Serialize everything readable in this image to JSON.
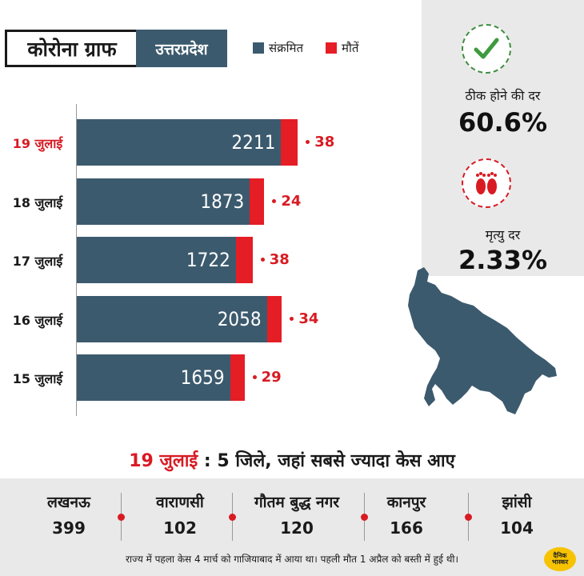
{
  "header": {
    "title": "कोरोना ग्राफ",
    "state": "उत्तरप्रदेश"
  },
  "legend": [
    {
      "label": "संक्रमित",
      "color": "#3c5a6e"
    },
    {
      "label": "मौतें",
      "color": "#e51d25"
    }
  ],
  "chart_data": {
    "type": "bar",
    "orientation": "horizontal",
    "stacked": true,
    "categories": [
      "19 जुलाई",
      "18 जुलाई",
      "17 जुलाई",
      "16 जुलाई",
      "15 जुलाई"
    ],
    "series": [
      {
        "name": "संक्रमित",
        "values": [
          2211,
          1873,
          1722,
          2058,
          1659
        ],
        "color": "#3c5a6e"
      },
      {
        "name": "मौतें",
        "values": [
          38,
          24,
          38,
          34,
          29
        ],
        "color": "#e51d25"
      }
    ],
    "highlight_category": "19 जुलाई"
  },
  "stats": {
    "recovery": {
      "label": "ठीक होने की दर",
      "value": "60.6%",
      "icon": "check-icon"
    },
    "death": {
      "label": "मृत्यु दर",
      "value": "2.33%",
      "icon": "footprints-icon"
    }
  },
  "headline": {
    "date": "19 जुलाई",
    "sep": " : ",
    "text": "5 जिले, जहां सबसे ज्यादा केस आए"
  },
  "districts": [
    {
      "name": "लखनऊ",
      "cases": "399"
    },
    {
      "name": "वाराणसी",
      "cases": "102"
    },
    {
      "name": "गौतम बुद्ध नगर",
      "cases": "120"
    },
    {
      "name": "कानपुर",
      "cases": "166"
    },
    {
      "name": "झांसी",
      "cases": "104"
    }
  ],
  "footnote": "राज्य में पहला केस 4 मार्च को गाजियाबाद में आया था। पहली मौत 1 अप्रैल को बस्ती में हुई थी।",
  "logo": {
    "line1": "दैनिक",
    "line2": "भास्कर"
  }
}
